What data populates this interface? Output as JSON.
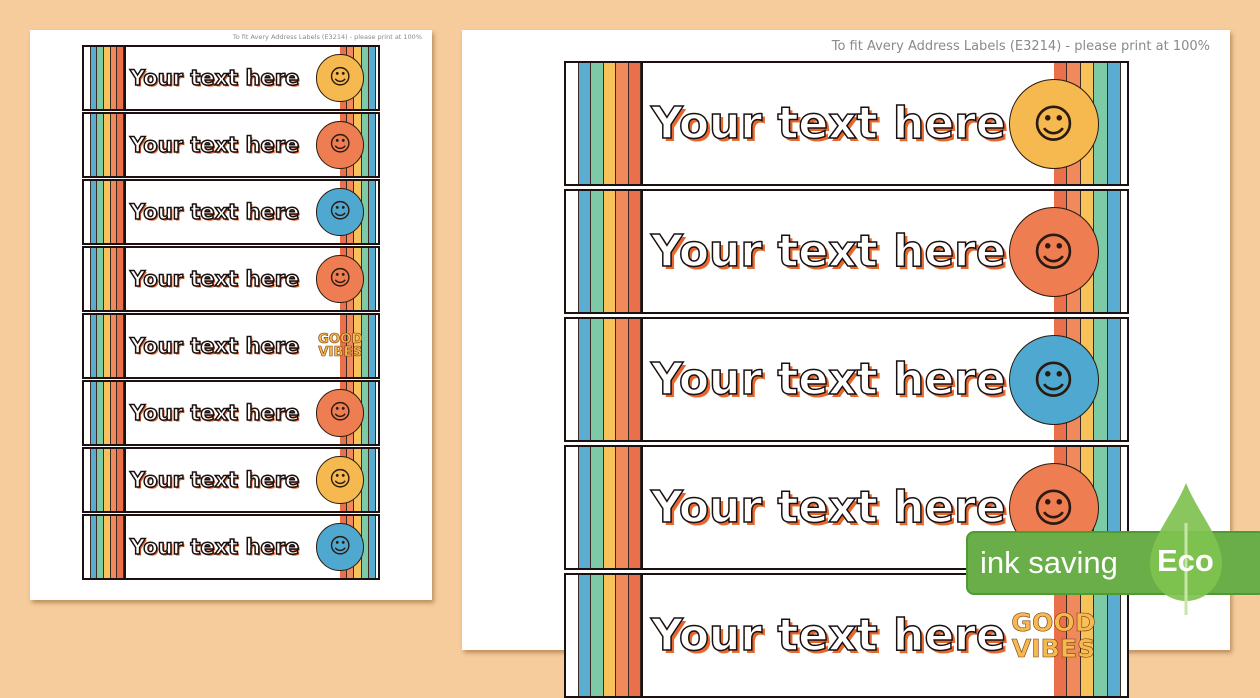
{
  "note": "To fit Avery Address Labels (E3214) - please print at 100%",
  "label_text": "Your text here",
  "colors": {
    "background": "#f6cc9c",
    "stripes": [
      "#ffffff",
      "#5aacd0",
      "#7dcaa7",
      "#f8c25a",
      "#f08a5d",
      "#e9704a"
    ],
    "text_shadow": "#e8672d",
    "eco_green": "#69ae48"
  },
  "labels": [
    {
      "decoration": "sunflowers-icon",
      "fill": "#f5b94f"
    },
    {
      "decoration": "peace-flower-icon",
      "fill": "#ee7d52"
    },
    {
      "decoration": "disco-ball-icon",
      "fill": "#4fa8cf"
    },
    {
      "decoration": "smiley-flower-icon",
      "fill": "#ee7d52"
    },
    {
      "decoration": "good-vibes-icon",
      "fill": "#f5b94f",
      "text": "GOOD VIBES"
    },
    {
      "decoration": "mushroom-icon",
      "fill": "#ee7d52"
    },
    {
      "decoration": "sun-icon",
      "fill": "#f5b94f"
    },
    {
      "decoration": "smiley-badge-icon",
      "fill": "#4fa8cf"
    }
  ],
  "badge": {
    "text": "ink saving",
    "eco": "Eco"
  }
}
